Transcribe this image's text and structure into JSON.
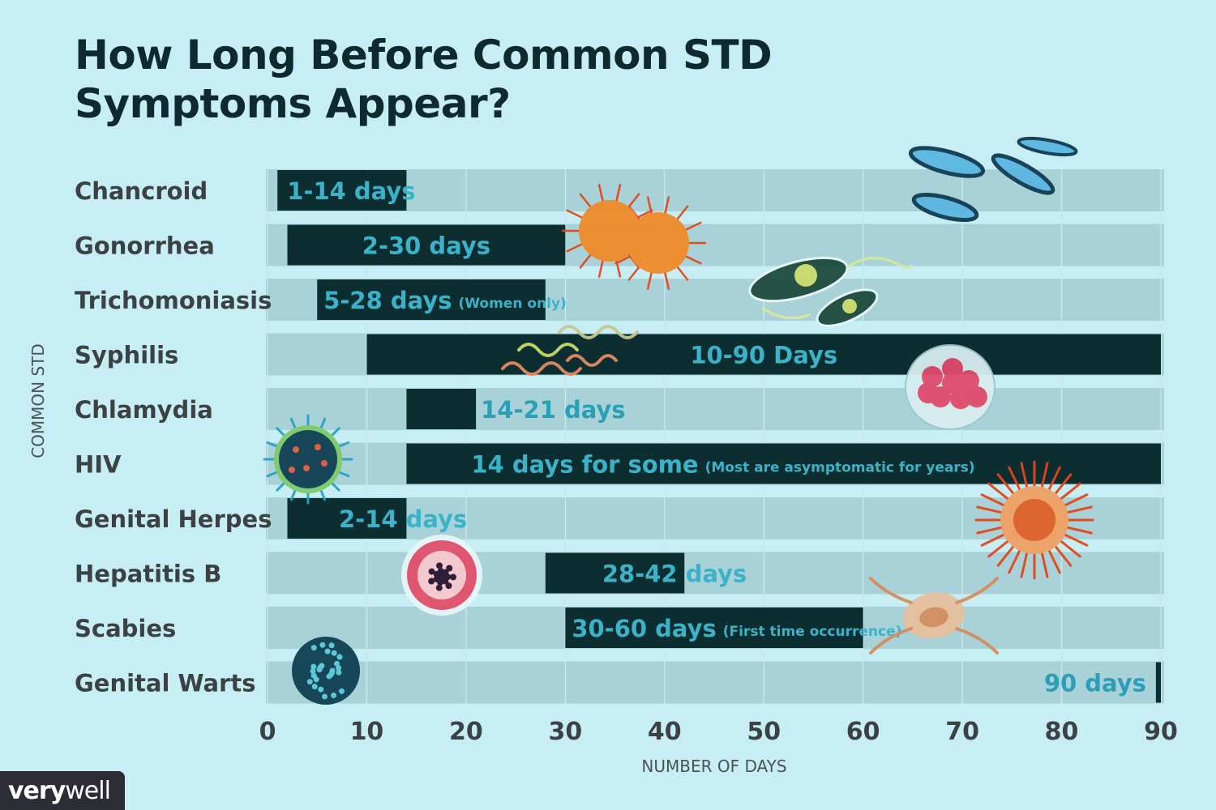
{
  "title": {
    "line1": "How Long Before Common STD",
    "line2": "Symptoms Appear?"
  },
  "logo": {
    "part1": "very",
    "part2": "well"
  },
  "colors": {
    "background": "#c8eef5",
    "track": "#a8d1d8",
    "bar": "#0c2e31",
    "label_on_bar": "#3ab3c8",
    "label_off_bar": "#2a9fb7",
    "category_text": "#3c4244",
    "axis_text": "#3c4244"
  },
  "chart_data": {
    "type": "bar",
    "orientation": "horizontal-range",
    "title": "How Long Before Common STD Symptoms Appear?",
    "xlabel": "NUMBER OF DAYS",
    "ylabel": "COMMON STD",
    "xlim": [
      0,
      90
    ],
    "xticks": [
      0,
      10,
      20,
      30,
      40,
      50,
      60,
      70,
      80,
      90
    ],
    "grid": true,
    "categories": [
      "Chancroid",
      "Gonorrhea",
      "Trichomoniasis",
      "Syphilis",
      "Chlamydia",
      "HIV",
      "Genital Herpes",
      "Hepatitis B",
      "Scabies",
      "Genital Warts"
    ],
    "ranges": [
      {
        "name": "Chancroid",
        "start": 1,
        "end": 14,
        "label": "1-14 days",
        "note": ""
      },
      {
        "name": "Gonorrhea",
        "start": 2,
        "end": 30,
        "label": "2-30 days",
        "note": ""
      },
      {
        "name": "Trichomoniasis",
        "start": 5,
        "end": 28,
        "label": "5-28 days",
        "note": "(Women only)"
      },
      {
        "name": "Syphilis",
        "start": 10,
        "end": 90,
        "label": "10-90 Days",
        "note": ""
      },
      {
        "name": "Chlamydia",
        "start": 14,
        "end": 21,
        "label": "14-21 days",
        "note": ""
      },
      {
        "name": "HIV",
        "start": 14,
        "end": 90,
        "label": "14 days for some",
        "note": "(Most are asymptomatic for years)"
      },
      {
        "name": "Genital Herpes",
        "start": 2,
        "end": 14,
        "label": "2-14 days",
        "note": ""
      },
      {
        "name": "Hepatitis B",
        "start": 28,
        "end": 42,
        "label": "28-42 days",
        "note": ""
      },
      {
        "name": "Scabies",
        "start": 30,
        "end": 60,
        "label": "30-60 days",
        "note": "(First time occurrence)"
      },
      {
        "name": "Genital Warts",
        "start": 89.5,
        "end": 90,
        "label": "90 days",
        "note": ""
      }
    ]
  }
}
